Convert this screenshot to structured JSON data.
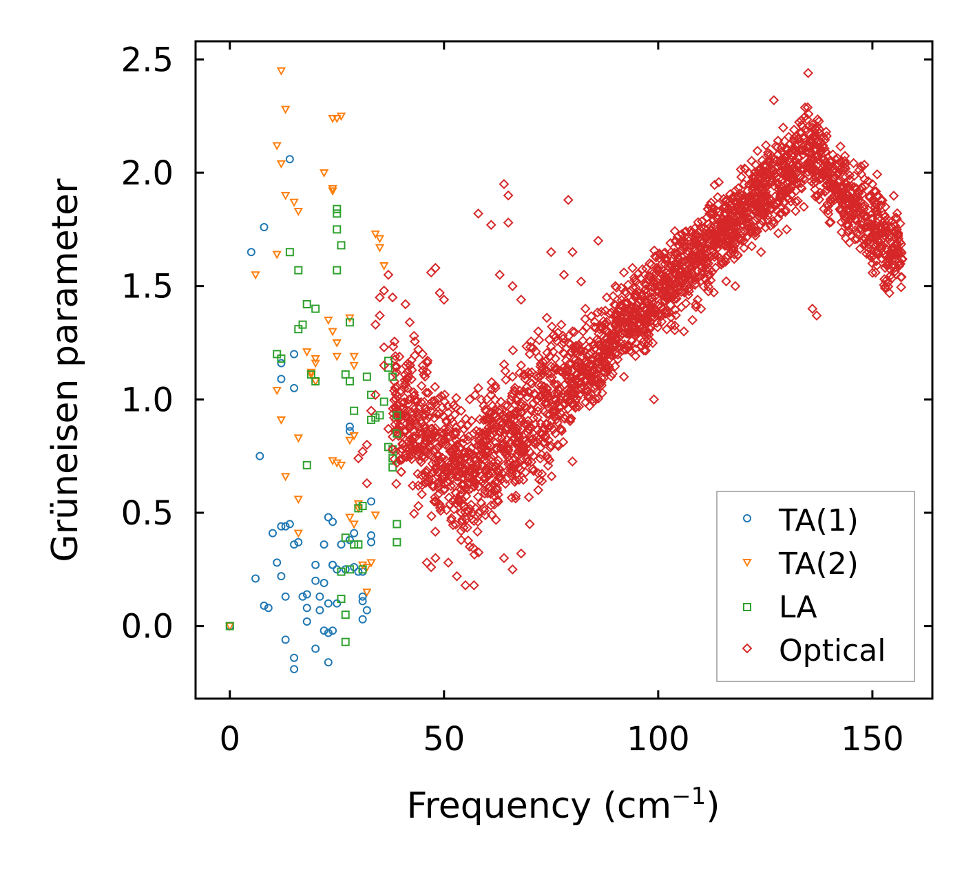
{
  "chart_data": {
    "type": "scatter",
    "title": "",
    "xlabel": "Frequency (cm",
    "xlabel_sup": "−1",
    "xlabel_tail": ")",
    "ylabel": "Grüneisen parameter",
    "xlim": [
      -8,
      164
    ],
    "ylim": [
      -0.32,
      2.58
    ],
    "xticks": [
      0,
      50,
      100,
      150
    ],
    "xtick_labels": [
      "0",
      "50",
      "100",
      "150"
    ],
    "yticks": [
      0.0,
      0.5,
      1.0,
      1.5,
      2.0,
      2.5
    ],
    "ytick_labels": [
      "0.0",
      "0.5",
      "1.0",
      "1.5",
      "2.0",
      "2.5"
    ],
    "grid": false,
    "legend_position": "bottom-right",
    "series": [
      {
        "name": "TA(1)",
        "marker": "circle",
        "color": "#1f77b4",
        "points": [
          [
            0,
            0
          ],
          [
            5,
            1.65
          ],
          [
            8,
            1.76
          ],
          [
            7,
            0.75
          ],
          [
            10,
            0.41
          ],
          [
            11,
            0.28
          ],
          [
            12,
            0.44
          ],
          [
            13,
            0.44
          ],
          [
            14,
            0.45
          ],
          [
            15,
            0.36
          ],
          [
            16,
            0.37
          ],
          [
            12,
            1.09
          ],
          [
            12,
            1.16
          ],
          [
            15,
            1.2
          ],
          [
            15,
            1.05
          ],
          [
            14,
            2.06
          ],
          [
            6,
            0.21
          ],
          [
            8,
            0.09
          ],
          [
            9,
            0.08
          ],
          [
            12,
            0.22
          ],
          [
            13,
            0.13
          ],
          [
            17,
            0.13
          ],
          [
            18,
            0.14
          ],
          [
            18,
            0.08
          ],
          [
            18,
            0.02
          ],
          [
            20,
            0.27
          ],
          [
            21,
            0.13
          ],
          [
            20,
            0.2
          ],
          [
            22,
            0.19
          ],
          [
            22,
            0.36
          ],
          [
            23,
            0.48
          ],
          [
            24,
            0.46
          ],
          [
            21,
            0.07
          ],
          [
            23,
            0.1
          ],
          [
            24,
            0.27
          ],
          [
            25,
            0.25
          ],
          [
            25,
            0.1
          ],
          [
            26,
            0.36
          ],
          [
            13,
            -0.06
          ],
          [
            15,
            -0.14
          ],
          [
            15,
            -0.19
          ],
          [
            20,
            -0.1
          ],
          [
            22,
            -0.02
          ],
          [
            23,
            -0.03
          ],
          [
            24,
            -0.02
          ],
          [
            23,
            -0.16
          ],
          [
            28,
            0.38
          ],
          [
            29,
            0.41
          ],
          [
            29,
            0.26
          ],
          [
            30,
            0.24
          ],
          [
            31,
            0.24
          ],
          [
            31,
            0.11
          ],
          [
            31,
            0.13
          ],
          [
            32,
            0.07
          ],
          [
            31,
            0.03
          ],
          [
            33,
            0.37
          ],
          [
            33,
            0.4
          ],
          [
            33,
            0.55
          ],
          [
            28,
            0.86
          ],
          [
            28,
            0.88
          ],
          [
            24,
            0.27
          ],
          [
            27,
            0.25
          ]
        ]
      },
      {
        "name": "TA(2)",
        "marker": "triangle-down",
        "color": "#ff7f0e",
        "points": [
          [
            0,
            0
          ],
          [
            6,
            1.55
          ],
          [
            11,
            1.64
          ],
          [
            11,
            2.12
          ],
          [
            12,
            2.04
          ],
          [
            12,
            2.45
          ],
          [
            13,
            2.28
          ],
          [
            13,
            1.9
          ],
          [
            15,
            1.87
          ],
          [
            16,
            1.83
          ],
          [
            11,
            1.04
          ],
          [
            12,
            0.91
          ],
          [
            13,
            0.66
          ],
          [
            16,
            0.83
          ],
          [
            16,
            0.56
          ],
          [
            16,
            0.41
          ],
          [
            18,
            1.21
          ],
          [
            19,
            1.12
          ],
          [
            20,
            1.16
          ],
          [
            20,
            1.18
          ],
          [
            20,
            1.08
          ],
          [
            22,
            2.0
          ],
          [
            23,
            1.35
          ],
          [
            24,
            1.93
          ],
          [
            24,
            1.3
          ],
          [
            25,
            1.25
          ],
          [
            24,
            2.24
          ],
          [
            25,
            2.24
          ],
          [
            26,
            2.25
          ],
          [
            24,
            1.92
          ],
          [
            25,
            1.19
          ],
          [
            28,
            1.36
          ],
          [
            29,
            1.15
          ],
          [
            29,
            1.19
          ],
          [
            28,
            0.82
          ],
          [
            29,
            0.84
          ],
          [
            24,
            0.73
          ],
          [
            25,
            0.72
          ],
          [
            26,
            0.71
          ],
          [
            28,
            0.48
          ],
          [
            29,
            0.45
          ],
          [
            30,
            0.52
          ],
          [
            30,
            0.54
          ],
          [
            31,
            0.27
          ],
          [
            32,
            0.26
          ],
          [
            32,
            0.15
          ],
          [
            33,
            0.28
          ],
          [
            34,
            1.73
          ],
          [
            35,
            1.71
          ],
          [
            35,
            1.67
          ],
          [
            36,
            1.59
          ],
          [
            34,
            0.49
          ],
          [
            19,
            1.11
          ]
        ]
      },
      {
        "name": "LA",
        "marker": "square",
        "color": "#2ca02c",
        "points": [
          [
            0,
            0
          ],
          [
            14,
            1.65
          ],
          [
            16,
            1.57
          ],
          [
            11,
            1.2
          ],
          [
            12,
            1.18
          ],
          [
            16,
            1.31
          ],
          [
            17,
            1.33
          ],
          [
            18,
            1.42
          ],
          [
            20,
            1.4
          ],
          [
            18,
            0.71
          ],
          [
            19,
            1.11
          ],
          [
            20,
            1.08
          ],
          [
            25,
            1.84
          ],
          [
            25,
            1.82
          ],
          [
            25,
            1.75
          ],
          [
            26,
            1.68
          ],
          [
            25,
            1.57
          ],
          [
            28,
            1.34
          ],
          [
            27,
            1.11
          ],
          [
            28,
            1.08
          ],
          [
            29,
            0.95
          ],
          [
            27,
            0.39
          ],
          [
            28,
            0.25
          ],
          [
            29,
            0.36
          ],
          [
            30,
            0.36
          ],
          [
            30,
            0.52
          ],
          [
            31,
            0.53
          ],
          [
            32,
            1.1
          ],
          [
            33,
            1.02
          ],
          [
            33,
            0.91
          ],
          [
            34,
            0.92
          ],
          [
            35,
            0.93
          ],
          [
            36,
            0.99
          ],
          [
            37,
            1.17
          ],
          [
            37,
            1.14
          ],
          [
            38,
            1.1
          ],
          [
            37,
            0.79
          ],
          [
            38,
            0.78
          ],
          [
            38,
            0.7
          ],
          [
            38,
            0.74
          ],
          [
            39,
            0.85
          ],
          [
            39,
            0.93
          ],
          [
            39,
            0.45
          ],
          [
            39,
            0.37
          ],
          [
            26,
            0.24
          ],
          [
            26,
            0.12
          ],
          [
            27,
            0.05
          ],
          [
            27,
            -0.07
          ],
          [
            31,
            0.25
          ]
        ]
      },
      {
        "name": "Optical",
        "marker": "diamond",
        "color": "#d62728",
        "trend": "Grüneisen parameter rises from about 0.6 near 55 cm^-1 to about 2.0–2.2 near 135 cm^-1, then falls to about 1.6 at 157 cm^-1",
        "points": [
          [
            30,
            0.74
          ],
          [
            31,
            0.77
          ],
          [
            32,
            0.8
          ],
          [
            32,
            0.63
          ],
          [
            33,
            0.95
          ],
          [
            34,
            1.02
          ],
          [
            34,
            1.33
          ],
          [
            35,
            1.37
          ],
          [
            35,
            1.45
          ],
          [
            36,
            1.48
          ],
          [
            37,
            1.55
          ],
          [
            38,
            1.45
          ],
          [
            36,
            1.23
          ],
          [
            36,
            1.15
          ],
          [
            37,
            0.87
          ],
          [
            38,
            0.78
          ],
          [
            39,
            0.72
          ],
          [
            40,
            0.68
          ],
          [
            41,
            1.42
          ],
          [
            42,
            1.34
          ],
          [
            43,
            1.28
          ],
          [
            44,
            1.22
          ],
          [
            45,
            1.2
          ],
          [
            46,
            1.12
          ],
          [
            47,
            1.56
          ],
          [
            48,
            1.58
          ],
          [
            49,
            1.47
          ],
          [
            50,
            1.44
          ],
          [
            46,
            0.28
          ],
          [
            47,
            0.26
          ],
          [
            48,
            0.3
          ],
          [
            51,
            0.28
          ],
          [
            53,
            0.22
          ],
          [
            55,
            0.18
          ],
          [
            57,
            0.18
          ],
          [
            54,
            0.42
          ],
          [
            56,
            0.35
          ],
          [
            58,
            0.5
          ],
          [
            60,
            0.62
          ],
          [
            62,
            0.7
          ],
          [
            64,
            0.78
          ],
          [
            58,
            1.82
          ],
          [
            61,
            1.77
          ],
          [
            64,
            1.95
          ],
          [
            65,
            1.9
          ],
          [
            65,
            1.78
          ],
          [
            63,
            1.55
          ],
          [
            66,
            1.5
          ],
          [
            68,
            1.44
          ],
          [
            70,
            0.88
          ],
          [
            72,
            1.3
          ],
          [
            74,
            1.36
          ],
          [
            75,
            1.65
          ],
          [
            78,
            1.55
          ],
          [
            80,
            1.65
          ],
          [
            79,
            1.88
          ],
          [
            82,
            1.52
          ],
          [
            83,
            1.4
          ],
          [
            85,
            1.32
          ],
          [
            86,
            1.7
          ],
          [
            88,
            1.45
          ],
          [
            90,
            1.5
          ],
          [
            92,
            1.56
          ],
          [
            94,
            1.58
          ],
          [
            96,
            1.46
          ],
          [
            98,
            1.6
          ],
          [
            99,
            1.0
          ],
          [
            100,
            1.5
          ],
          [
            101,
            1.55
          ],
          [
            102,
            1.62
          ],
          [
            103,
            1.65
          ],
          [
            104,
            1.7
          ],
          [
            106,
            1.68
          ],
          [
            108,
            1.72
          ],
          [
            110,
            1.76
          ],
          [
            112,
            1.82
          ],
          [
            114,
            1.86
          ],
          [
            116,
            1.88
          ],
          [
            118,
            1.92
          ],
          [
            120,
            1.95
          ],
          [
            122,
            1.98
          ],
          [
            124,
            2.02
          ],
          [
            126,
            2.06
          ],
          [
            127,
            2.32
          ],
          [
            128,
            2.08
          ],
          [
            130,
            2.1
          ],
          [
            132,
            2.12
          ],
          [
            134,
            2.15
          ],
          [
            135,
            2.44
          ],
          [
            136,
            2.2
          ],
          [
            136,
            1.4
          ],
          [
            137,
            1.37
          ],
          [
            138,
            2.0
          ],
          [
            140,
            1.95
          ],
          [
            142,
            1.92
          ],
          [
            144,
            1.9
          ],
          [
            146,
            1.88
          ],
          [
            148,
            1.85
          ],
          [
            150,
            1.95
          ],
          [
            150,
            1.6
          ],
          [
            152,
            1.88
          ],
          [
            154,
            1.72
          ],
          [
            156,
            1.65
          ],
          [
            157,
            1.62
          ],
          [
            95,
            1.3
          ],
          [
            92,
            1.1
          ],
          [
            90,
            1.2
          ],
          [
            88,
            1.25
          ],
          [
            86,
            1.18
          ],
          [
            84,
            1.1
          ],
          [
            82,
            1.05
          ],
          [
            80,
            0.98
          ],
          [
            78,
            0.92
          ],
          [
            76,
            0.85
          ],
          [
            74,
            0.75
          ],
          [
            72,
            0.6
          ],
          [
            70,
            0.45
          ],
          [
            68,
            0.32
          ],
          [
            66,
            0.25
          ],
          [
            64,
            0.3
          ],
          [
            110,
            1.4
          ],
          [
            108,
            1.35
          ],
          [
            106,
            1.3
          ],
          [
            112,
            1.55
          ],
          [
            115,
            1.6
          ],
          [
            118,
            1.5
          ],
          [
            120,
            1.7
          ],
          [
            124,
            1.65
          ],
          [
            128,
            1.8
          ],
          [
            130,
            1.75
          ],
          [
            134,
            1.85
          ],
          [
            140,
            1.78
          ],
          [
            145,
            1.75
          ],
          [
            148,
            1.68
          ],
          [
            60,
            1.0
          ],
          [
            62,
            1.05
          ],
          [
            66,
            1.1
          ],
          [
            68,
            1.15
          ],
          [
            70,
            1.2
          ],
          [
            72,
            1.1
          ],
          [
            74,
            1.05
          ],
          [
            76,
            1.18
          ],
          [
            78,
            1.25
          ],
          [
            80,
            1.3
          ],
          [
            50,
            0.85
          ],
          [
            52,
            0.9
          ],
          [
            54,
            0.95
          ],
          [
            56,
            1.0
          ],
          [
            58,
            1.05
          ],
          [
            45,
            0.75
          ],
          [
            44,
            0.62
          ],
          [
            42,
            0.8
          ],
          [
            40,
            0.88
          ],
          [
            48,
            0.7
          ],
          [
            50,
            0.6
          ],
          [
            52,
            0.55
          ],
          [
            54,
            0.5
          ]
        ]
      }
    ]
  }
}
